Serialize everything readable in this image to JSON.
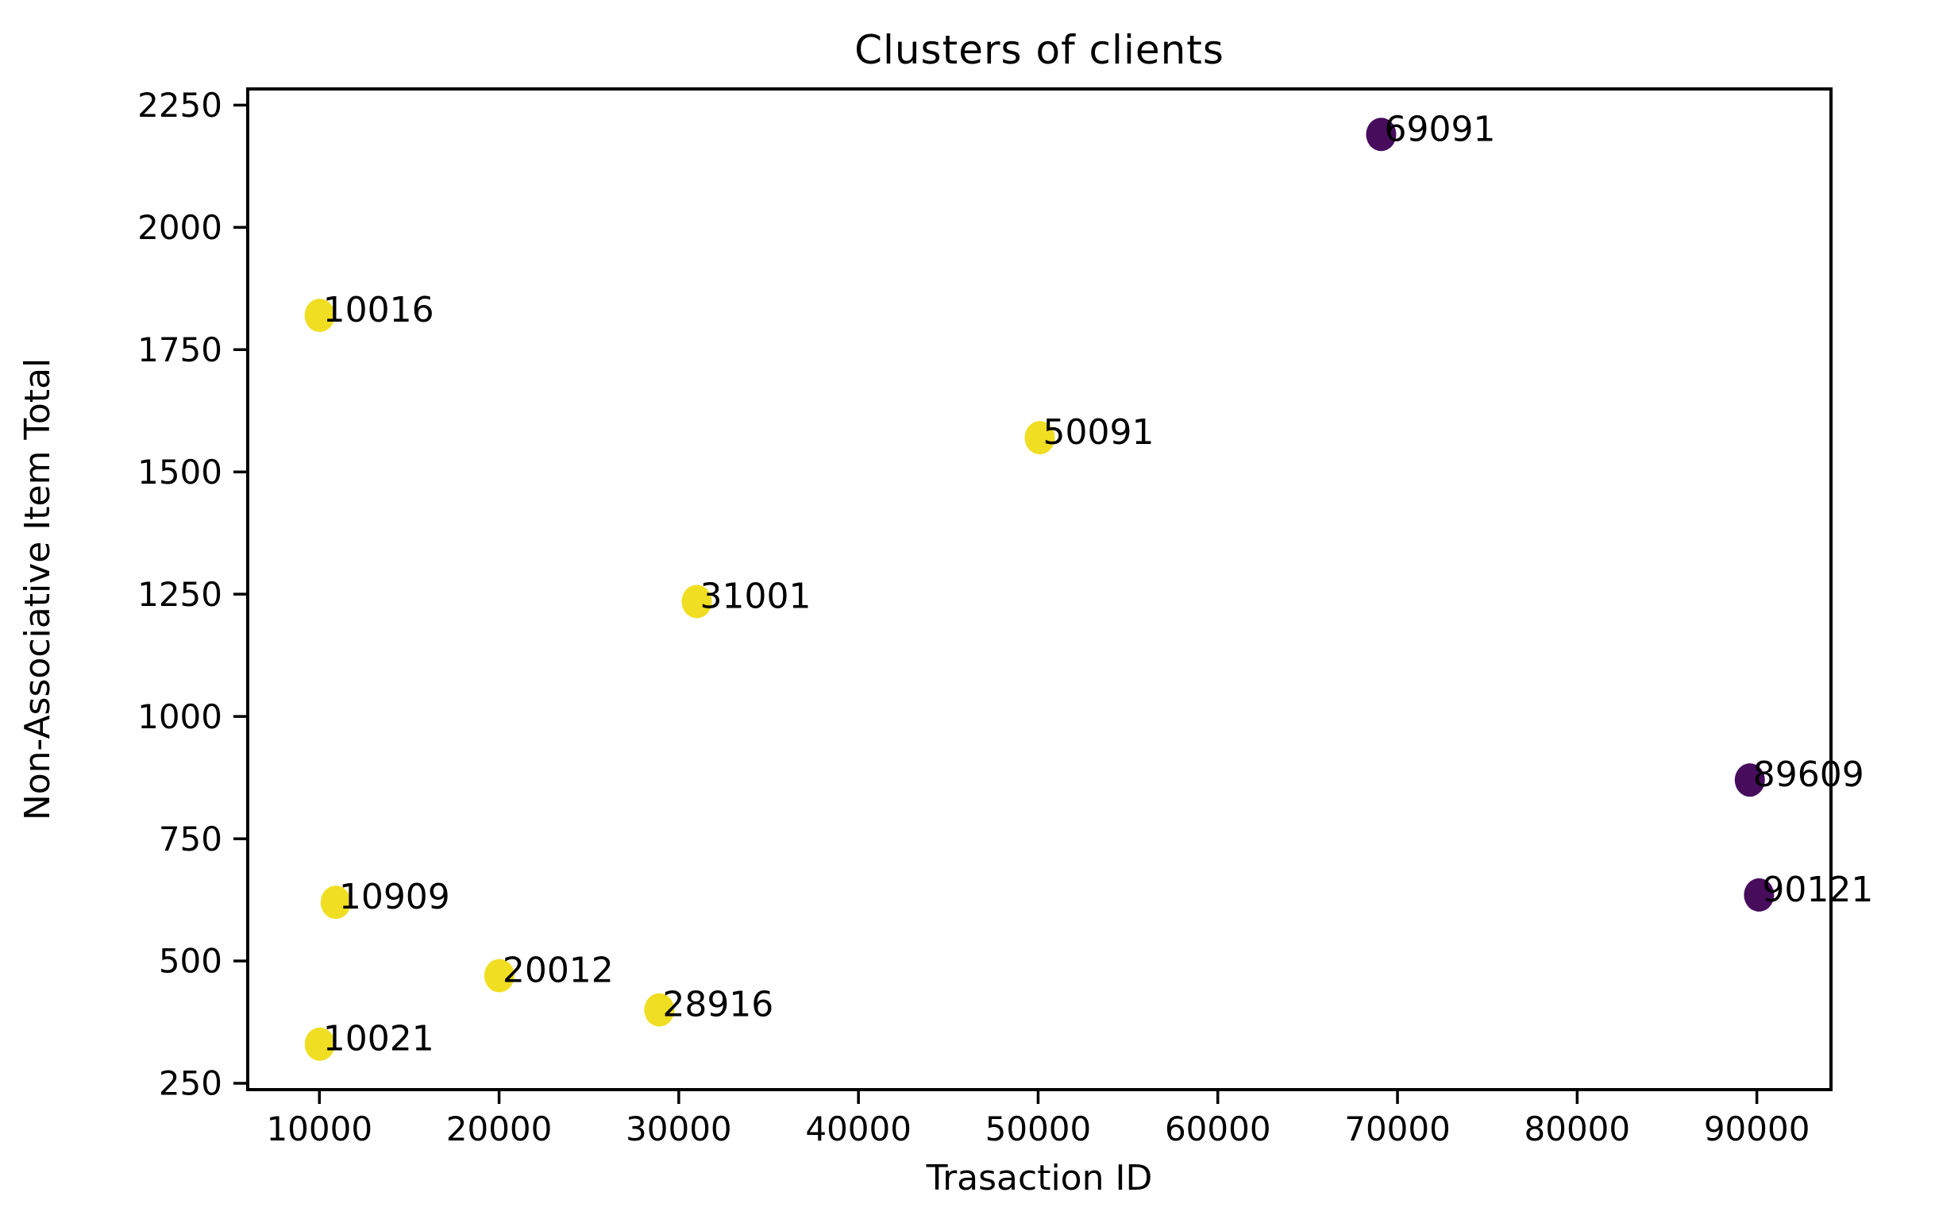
{
  "chart_data": {
    "type": "scatter",
    "title": "Clusters of clients",
    "xlabel": "Trasaction ID",
    "ylabel": "Non-Associative Item Total",
    "x_ticks": [
      10000,
      20000,
      30000,
      40000,
      50000,
      60000,
      70000,
      80000,
      90000
    ],
    "x_tick_labels": [
      "10000",
      "20000",
      "30000",
      "40000",
      "50000",
      "60000",
      "70000",
      "80000",
      "90000"
    ],
    "y_ticks": [
      250,
      500,
      750,
      1000,
      1250,
      1500,
      1750,
      2000,
      2250
    ],
    "y_tick_labels": [
      "250",
      "500",
      "750",
      "1000",
      "1250",
      "1500",
      "1750",
      "2000",
      "2250"
    ],
    "xlim": [
      6011,
      94126
    ],
    "ylim": [
      237,
      2283
    ],
    "axis_margin_fraction": 0.05,
    "grid": false,
    "legend": "none",
    "cluster_colors": {
      "cluster_0": "#470d5c",
      "cluster_1": "#f0de22"
    },
    "axis_color": "#000000",
    "text_color": "#000000",
    "background_color": "#ffffff",
    "points": [
      {
        "label": "10016",
        "x": 10016,
        "y": 1820,
        "cluster": "cluster_1"
      },
      {
        "label": "10021",
        "x": 10021,
        "y": 330,
        "cluster": "cluster_1"
      },
      {
        "label": "10909",
        "x": 10909,
        "y": 620,
        "cluster": "cluster_1"
      },
      {
        "label": "20012",
        "x": 20012,
        "y": 470,
        "cluster": "cluster_1"
      },
      {
        "label": "28916",
        "x": 28916,
        "y": 400,
        "cluster": "cluster_1"
      },
      {
        "label": "31001",
        "x": 31001,
        "y": 1235,
        "cluster": "cluster_1"
      },
      {
        "label": "50091",
        "x": 50091,
        "y": 1570,
        "cluster": "cluster_1"
      },
      {
        "label": "69091",
        "x": 69091,
        "y": 2190,
        "cluster": "cluster_0"
      },
      {
        "label": "89609",
        "x": 89609,
        "y": 870,
        "cluster": "cluster_0"
      },
      {
        "label": "90121",
        "x": 90121,
        "y": 635,
        "cluster": "cluster_0"
      }
    ]
  }
}
